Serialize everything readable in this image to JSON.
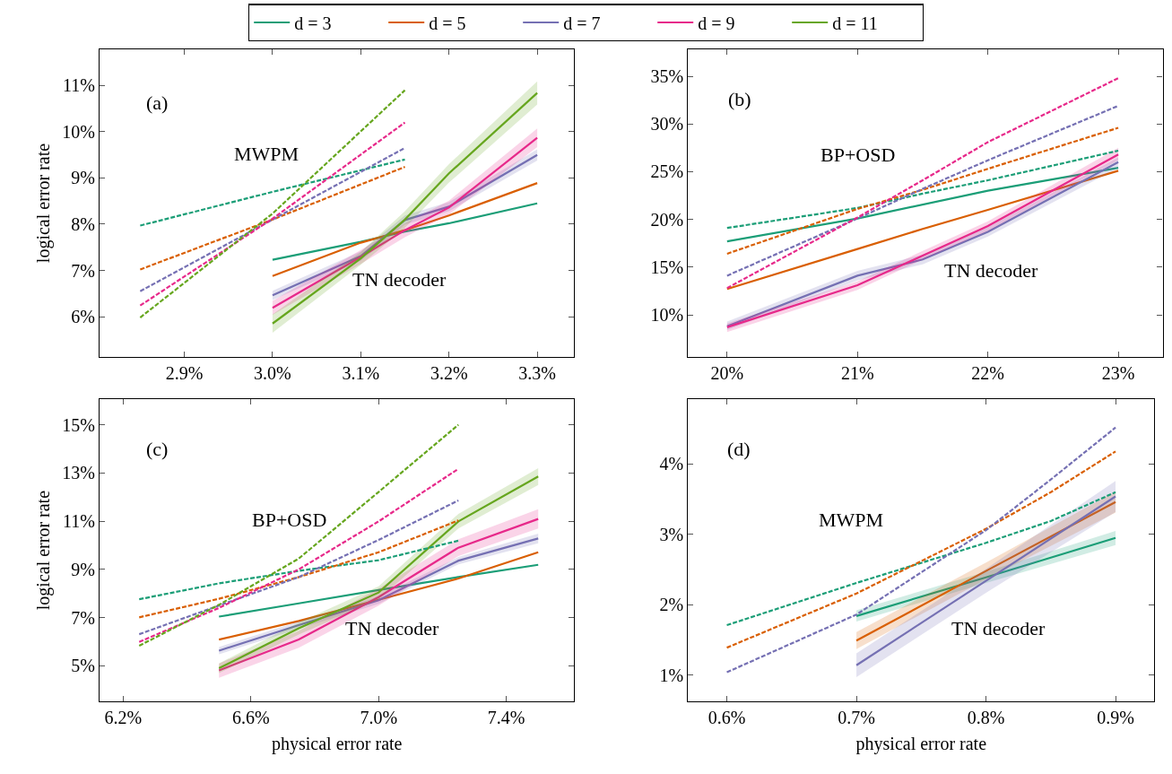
{
  "chart_data": [
    {
      "type": "line",
      "ylabel": "logical error rate",
      "legend": "top",
      "xlim": [
        2.804,
        3.342
      ],
      "ylim": [
        5.13,
        11.78
      ],
      "xticks": [
        {
          "value": 2.9,
          "label": "2.9%"
        },
        {
          "value": 3.0,
          "label": "3.0%"
        },
        {
          "value": 3.1,
          "label": "3.1%"
        },
        {
          "value": 3.2,
          "label": "3.2%"
        },
        {
          "value": 3.3,
          "label": "3.3%"
        }
      ],
      "yticks": [
        {
          "value": 6,
          "label": "6%"
        },
        {
          "value": 7,
          "label": "7%"
        },
        {
          "value": 8,
          "label": "8%"
        },
        {
          "value": 9,
          "label": "9%"
        },
        {
          "value": 10,
          "label": "10%"
        },
        {
          "value": 11,
          "label": "11%"
        }
      ],
      "annotations": [
        "(a)",
        "MWPM",
        "TN decoder"
      ],
      "series": [
        {
          "color": "#1b9e77",
          "line_style": "dashed",
          "x": [
            2.85,
            3.0,
            3.15
          ],
          "values": [
            7.97,
            8.7,
            9.4
          ]
        },
        {
          "color": "#d95f02",
          "line_style": "dashed",
          "x": [
            2.85,
            3.0,
            3.15
          ],
          "values": [
            7.02,
            8.1,
            9.24
          ]
        },
        {
          "color": "#7570b3",
          "line_style": "dashed",
          "x": [
            2.85,
            3.0,
            3.15
          ],
          "values": [
            6.55,
            8.1,
            9.65
          ]
        },
        {
          "color": "#e7298a",
          "line_style": "dashed",
          "x": [
            2.85,
            3.0,
            3.15
          ],
          "values": [
            6.24,
            8.12,
            10.2
          ]
        },
        {
          "color": "#66a61e",
          "line_style": "dashed",
          "x": [
            2.85,
            3.0,
            3.15
          ],
          "values": [
            5.98,
            8.23,
            10.9
          ]
        },
        {
          "name": "d = 3",
          "color": "#1b9e77",
          "line_style": "solid",
          "x": [
            3.0,
            3.1,
            3.15,
            3.2,
            3.3
          ],
          "values": [
            7.23,
            7.62,
            7.84,
            8.02,
            8.45
          ]
        },
        {
          "name": "d = 5",
          "color": "#d95f02",
          "line_style": "solid",
          "x": [
            3.0,
            3.1,
            3.15,
            3.2,
            3.3
          ],
          "values": [
            6.88,
            7.6,
            7.87,
            8.19,
            8.89
          ]
        },
        {
          "name": "d = 7",
          "color": "#7570b3",
          "line_style": "solid",
          "x": [
            3.0,
            3.1,
            3.15,
            3.2,
            3.3
          ],
          "values": [
            6.46,
            7.31,
            8.09,
            8.38,
            9.5
          ],
          "lower": [
            6.36,
            7.21,
            7.99,
            8.28,
            9.38
          ],
          "upper": [
            6.56,
            7.41,
            8.19,
            8.48,
            9.62
          ]
        },
        {
          "name": "d = 9",
          "color": "#e7298a",
          "line_style": "solid",
          "x": [
            3.0,
            3.1,
            3.15,
            3.2,
            3.3
          ],
          "values": [
            6.19,
            7.29,
            7.87,
            8.36,
            9.87
          ],
          "lower": [
            6.04,
            7.14,
            7.72,
            8.21,
            9.67
          ],
          "upper": [
            6.34,
            7.44,
            8.02,
            8.51,
            10.07
          ]
        },
        {
          "name": "d = 11",
          "color": "#66a61e",
          "line_style": "solid",
          "x": [
            3.0,
            3.1,
            3.15,
            3.2,
            3.3
          ],
          "values": [
            5.85,
            7.26,
            8.1,
            9.1,
            10.84
          ],
          "lower": [
            5.65,
            7.12,
            7.92,
            8.9,
            10.59
          ],
          "upper": [
            6.05,
            7.4,
            8.28,
            9.3,
            11.09
          ]
        }
      ]
    },
    {
      "type": "line",
      "xlim": [
        19.7,
        23.34
      ],
      "ylim": [
        5.6,
        37.8
      ],
      "xticks": [
        {
          "value": 20,
          "label": "20%"
        },
        {
          "value": 21,
          "label": "21%"
        },
        {
          "value": 22,
          "label": "22%"
        },
        {
          "value": 23,
          "label": "23%"
        }
      ],
      "yticks": [
        {
          "value": 10,
          "label": "10%"
        },
        {
          "value": 15,
          "label": "15%"
        },
        {
          "value": 20,
          "label": "20%"
        },
        {
          "value": 25,
          "label": "25%"
        },
        {
          "value": 30,
          "label": "30%"
        },
        {
          "value": 35,
          "label": "35%"
        }
      ],
      "annotations": [
        "(b)",
        "BP+OSD",
        "TN decoder"
      ],
      "series": [
        {
          "color": "#1b9e77",
          "line_style": "dashed",
          "x": [
            20,
            21,
            21.5,
            22,
            23
          ],
          "values": [
            19.1,
            21.2,
            22.7,
            24.1,
            27.2
          ]
        },
        {
          "color": "#d95f02",
          "line_style": "dashed",
          "x": [
            20,
            21,
            21.5,
            22,
            23
          ],
          "values": [
            16.4,
            21.1,
            23.1,
            25.3,
            29.6
          ]
        },
        {
          "color": "#7570b3",
          "line_style": "dashed",
          "x": [
            20,
            21,
            21.5,
            22,
            23
          ],
          "values": [
            14.1,
            20.1,
            23.2,
            26.2,
            31.9
          ]
        },
        {
          "color": "#e7298a",
          "line_style": "dashed",
          "x": [
            20,
            21,
            21.5,
            22,
            23
          ],
          "values": [
            12.8,
            20.2,
            24.1,
            28.1,
            34.8
          ]
        },
        {
          "name": "d = 3",
          "color": "#1b9e77",
          "line_style": "solid",
          "x": [
            20,
            21,
            22,
            23
          ],
          "values": [
            17.7,
            20.1,
            23.0,
            25.4
          ]
        },
        {
          "name": "d = 5",
          "color": "#d95f02",
          "line_style": "solid",
          "x": [
            20,
            21,
            21.5,
            22,
            23
          ],
          "values": [
            12.7,
            16.9,
            19.0,
            21.0,
            25.1
          ]
        },
        {
          "name": "d = 7",
          "color": "#7570b3",
          "line_style": "solid",
          "x": [
            20,
            21,
            21.5,
            22,
            23
          ],
          "values": [
            8.8,
            14.1,
            15.8,
            18.7,
            26.0
          ],
          "lower": [
            8.4,
            13.6,
            15.3,
            18.2,
            25.4
          ],
          "upper": [
            9.3,
            14.6,
            16.3,
            19.2,
            26.5
          ]
        },
        {
          "name": "d = 9",
          "color": "#e7298a",
          "line_style": "solid",
          "x": [
            20,
            21,
            21.5,
            22,
            23
          ],
          "values": [
            8.7,
            13.1,
            16.2,
            19.3,
            26.8
          ],
          "lower": [
            8.2,
            12.6,
            15.8,
            18.8,
            26.2
          ],
          "upper": [
            9.1,
            13.5,
            16.7,
            19.8,
            27.5
          ]
        }
      ]
    },
    {
      "type": "line",
      "xlabel": "physical error rate",
      "ylabel": "logical error rate",
      "xlim": [
        6.126,
        7.613
      ],
      "ylim": [
        3.53,
        16.05
      ],
      "xticks": [
        {
          "value": 6.2,
          "label": "6.2%"
        },
        {
          "value": 6.6,
          "label": "6.6%"
        },
        {
          "value": 7.0,
          "label": "7.0%"
        },
        {
          "value": 7.4,
          "label": "7.4%"
        }
      ],
      "yticks": [
        {
          "value": 5,
          "label": "5%"
        },
        {
          "value": 7,
          "label": "7%"
        },
        {
          "value": 9,
          "label": "9%"
        },
        {
          "value": 11,
          "label": "11%"
        },
        {
          "value": 13,
          "label": "13%"
        },
        {
          "value": 15,
          "label": "15%"
        }
      ],
      "annotations": [
        "(c)",
        "BP+OSD",
        "TN decoder"
      ],
      "series": [
        {
          "color": "#1b9e77",
          "line_style": "dashed",
          "x": [
            6.25,
            6.5,
            6.75,
            7.0,
            7.25
          ],
          "values": [
            7.76,
            8.42,
            8.94,
            9.38,
            10.19
          ]
        },
        {
          "color": "#d95f02",
          "line_style": "dashed",
          "x": [
            6.25,
            6.5,
            6.75,
            7.0,
            7.25
          ],
          "values": [
            7.01,
            7.78,
            8.68,
            9.71,
            11.03
          ]
        },
        {
          "color": "#7570b3",
          "line_style": "dashed",
          "x": [
            6.25,
            6.5,
            6.75,
            7.0,
            7.25
          ],
          "values": [
            6.31,
            7.5,
            8.68,
            10.22,
            11.86
          ]
        },
        {
          "color": "#e7298a",
          "line_style": "dashed",
          "x": [
            6.25,
            6.5,
            6.75,
            7.0,
            7.25
          ],
          "values": [
            5.99,
            7.4,
            9.0,
            10.99,
            13.17
          ]
        },
        {
          "color": "#66a61e",
          "line_style": "dashed",
          "x": [
            6.25,
            6.5,
            6.75,
            7.0,
            7.25
          ],
          "values": [
            5.83,
            7.53,
            9.45,
            12.21,
            15.0
          ]
        },
        {
          "name": "d = 3",
          "color": "#1b9e77",
          "line_style": "solid",
          "x": [
            6.5,
            6.75,
            7.0,
            7.25,
            7.5
          ],
          "values": [
            7.04,
            7.59,
            8.14,
            8.68,
            9.19
          ]
        },
        {
          "name": "d = 5",
          "color": "#d95f02",
          "line_style": "solid",
          "x": [
            6.5,
            6.75,
            7.0,
            7.25,
            7.5
          ],
          "values": [
            6.09,
            6.86,
            7.74,
            8.62,
            9.71
          ]
        },
        {
          "name": "d = 7",
          "color": "#7570b3",
          "line_style": "solid",
          "x": [
            6.5,
            6.75,
            7.0,
            7.25,
            7.5
          ],
          "values": [
            5.63,
            6.69,
            7.72,
            9.36,
            10.28
          ],
          "lower": [
            5.48,
            6.54,
            7.57,
            9.21,
            10.08
          ],
          "upper": [
            5.78,
            6.84,
            7.87,
            9.51,
            10.48
          ]
        },
        {
          "name": "d = 9",
          "color": "#e7298a",
          "line_style": "solid",
          "x": [
            6.5,
            6.75,
            7.0,
            7.25,
            7.5
          ],
          "values": [
            4.81,
            6.09,
            7.85,
            9.9,
            11.09
          ],
          "lower": [
            4.5,
            5.75,
            7.5,
            9.55,
            10.7
          ],
          "upper": [
            5.1,
            6.45,
            8.2,
            10.25,
            11.5
          ]
        },
        {
          "name": "d = 11",
          "color": "#66a61e",
          "line_style": "solid",
          "x": [
            6.5,
            6.75,
            7.0,
            7.25,
            7.5
          ],
          "values": [
            4.9,
            6.56,
            8.04,
            10.99,
            12.85
          ],
          "lower": [
            4.7,
            6.3,
            7.75,
            10.7,
            12.5
          ],
          "upper": [
            5.1,
            6.8,
            8.3,
            11.3,
            13.2
          ]
        }
      ]
    },
    {
      "type": "line",
      "xlabel": "physical error rate",
      "xlim": [
        0.57,
        0.93
      ],
      "ylim": [
        0.628,
        4.92
      ],
      "xticks": [
        {
          "value": 0.6,
          "label": "0.6%"
        },
        {
          "value": 0.7,
          "label": "0.7%"
        },
        {
          "value": 0.8,
          "label": "0.8%"
        },
        {
          "value": 0.9,
          "label": "0.9%"
        }
      ],
      "yticks": [
        {
          "value": 1,
          "label": "1%"
        },
        {
          "value": 2,
          "label": "2%"
        },
        {
          "value": 3,
          "label": "3%"
        },
        {
          "value": 4,
          "label": "4%"
        }
      ],
      "annotations": [
        "(d)",
        "MWPM",
        "TN decoder"
      ],
      "series": [
        {
          "color": "#1b9e77",
          "line_style": "dashed",
          "x": [
            0.6,
            0.7,
            0.8,
            0.85,
            0.9
          ],
          "values": [
            1.71,
            2.31,
            2.88,
            3.19,
            3.6
          ]
        },
        {
          "color": "#d95f02",
          "line_style": "dashed",
          "x": [
            0.6,
            0.7,
            0.8,
            0.85,
            0.9
          ],
          "values": [
            1.39,
            2.16,
            3.08,
            3.6,
            4.18
          ]
        },
        {
          "color": "#7570b3",
          "line_style": "dashed",
          "x": [
            0.6,
            0.7,
            0.8,
            0.85,
            0.9
          ],
          "values": [
            1.04,
            1.86,
            3.06,
            3.78,
            4.52
          ]
        },
        {
          "name": "d = 3",
          "color": "#1b9e77",
          "line_style": "solid",
          "x": [
            0.7,
            0.8,
            0.9
          ],
          "values": [
            1.84,
            2.39,
            2.95
          ],
          "lower": [
            1.76,
            2.31,
            2.85
          ],
          "upper": [
            1.92,
            2.47,
            3.05
          ]
        },
        {
          "name": "d = 5",
          "color": "#d95f02",
          "line_style": "solid",
          "x": [
            0.7,
            0.8,
            0.9
          ],
          "values": [
            1.49,
            2.48,
            3.46
          ],
          "lower": [
            1.37,
            2.36,
            3.31
          ],
          "upper": [
            1.61,
            2.6,
            3.61
          ]
        },
        {
          "name": "d = 7",
          "color": "#7570b3",
          "line_style": "solid",
          "x": [
            0.7,
            0.8,
            0.9
          ],
          "values": [
            1.14,
            2.34,
            3.54
          ],
          "lower": [
            0.97,
            2.17,
            3.32
          ],
          "upper": [
            1.31,
            2.51,
            3.76
          ]
        }
      ]
    }
  ]
}
